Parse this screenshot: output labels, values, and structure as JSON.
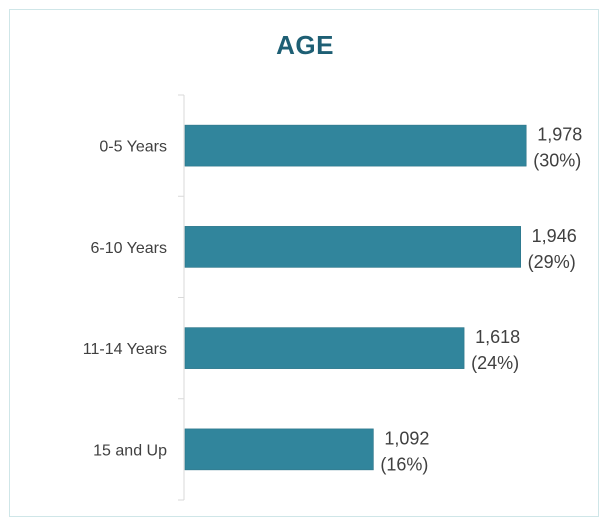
{
  "chart_data": {
    "type": "bar",
    "orientation": "horizontal",
    "title": "AGE",
    "categories": [
      "0-5 Years",
      "6-10 Years",
      "11-14 Years",
      "15 and Up"
    ],
    "values": [
      1978,
      1946,
      1618,
      1092
    ],
    "value_labels": [
      "1,978",
      "1,946",
      "1,618",
      "1,092"
    ],
    "percent_labels": [
      "(30%)",
      "(29%)",
      "(24%)",
      "(16%)"
    ],
    "xlim": [
      0,
      2000
    ],
    "grid": false,
    "legend": "none",
    "bar_color": "#31859c",
    "title_color": "#1e5f74"
  }
}
